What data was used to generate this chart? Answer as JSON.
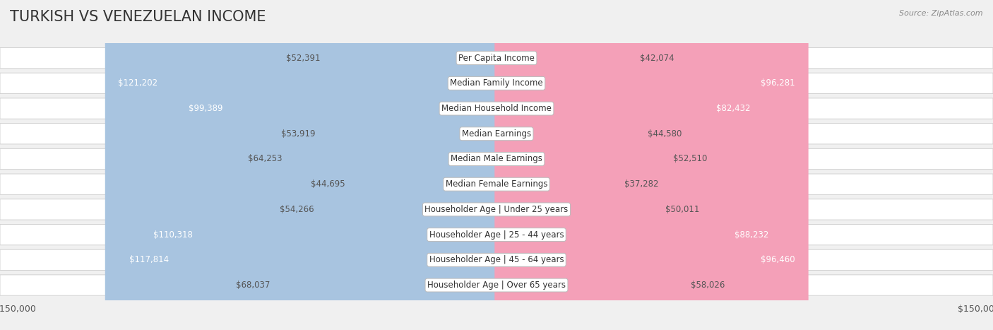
{
  "title": "TURKISH VS VENEZUELAN INCOME",
  "source": "Source: ZipAtlas.com",
  "categories": [
    "Per Capita Income",
    "Median Family Income",
    "Median Household Income",
    "Median Earnings",
    "Median Male Earnings",
    "Median Female Earnings",
    "Householder Age | Under 25 years",
    "Householder Age | 25 - 44 years",
    "Householder Age | 45 - 64 years",
    "Householder Age | Over 65 years"
  ],
  "turkish_values": [
    52391,
    121202,
    99389,
    53919,
    64253,
    44695,
    54266,
    110318,
    117814,
    68037
  ],
  "venezuelan_values": [
    42074,
    96281,
    82432,
    44580,
    52510,
    37282,
    50011,
    88232,
    96460,
    58026
  ],
  "max_value": 150000,
  "turkish_color": "#a8c4e0",
  "venezuelan_color": "#f4a0b8",
  "label_threshold": 80000,
  "background_color": "#f0f0f0",
  "row_bg_color": "#ffffff",
  "row_border_color": "#cccccc",
  "title_fontsize": 15,
  "label_fontsize": 8.5,
  "category_fontsize": 8.5,
  "axis_label_fontsize": 9
}
